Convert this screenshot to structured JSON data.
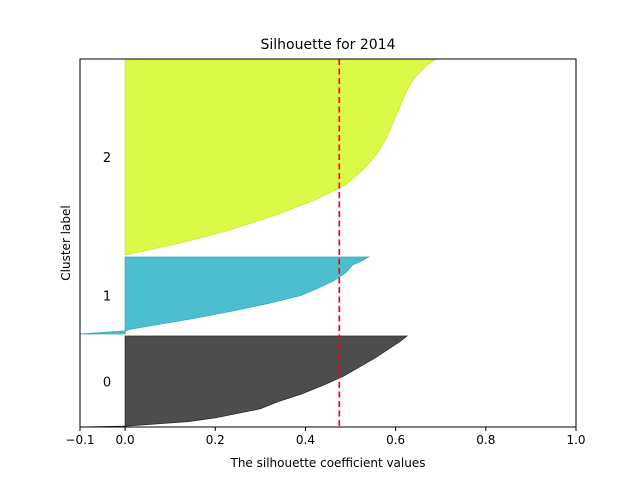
{
  "chart_data": {
    "type": "area",
    "title": "Silhouette for 2014",
    "xlabel": "The silhouette coefficient values",
    "ylabel": "Cluster label",
    "xlim": [
      -0.1,
      1.0
    ],
    "xticks": [
      -0.1,
      0.0,
      0.2,
      0.4,
      0.6,
      0.8,
      1.0
    ],
    "xtick_labels": [
      "−0.1",
      "0.0",
      "0.2",
      "0.4",
      "0.6",
      "0.8",
      "1.0"
    ],
    "average_silhouette": 0.475,
    "average_line_color": "#ff0000",
    "grid": false,
    "clusters": [
      {
        "label": "0",
        "color": "#4d4d4d",
        "edge": "#2a2a2a",
        "profile": [
          [
            0.0,
            0.625
          ],
          [
            0.06,
            0.61
          ],
          [
            0.14,
            0.585
          ],
          [
            0.24,
            0.555
          ],
          [
            0.34,
            0.52
          ],
          [
            0.44,
            0.485
          ],
          [
            0.54,
            0.44
          ],
          [
            0.64,
            0.39
          ],
          [
            0.72,
            0.34
          ],
          [
            0.8,
            0.3
          ],
          [
            0.86,
            0.24
          ],
          [
            0.9,
            0.2
          ],
          [
            0.94,
            0.14
          ],
          [
            0.97,
            0.06
          ],
          [
            0.99,
            0.0
          ],
          [
            1.0,
            -0.1
          ]
        ]
      },
      {
        "label": "1",
        "color": "#4bbfcf",
        "edge": "#3aa9b8",
        "profile": [
          [
            0.0,
            0.54
          ],
          [
            0.05,
            0.525
          ],
          [
            0.1,
            0.505
          ],
          [
            0.2,
            0.49
          ],
          [
            0.3,
            0.465
          ],
          [
            0.4,
            0.43
          ],
          [
            0.5,
            0.39
          ],
          [
            0.6,
            0.32
          ],
          [
            0.7,
            0.24
          ],
          [
            0.8,
            0.15
          ],
          [
            0.88,
            0.07
          ],
          [
            0.94,
            0.01
          ],
          [
            0.96,
            0.0
          ],
          [
            1.0,
            -0.1
          ]
        ]
      },
      {
        "label": "2",
        "color": "#dbfa48",
        "edge": "#c7e63a",
        "profile": [
          [
            0.0,
            0.69
          ],
          [
            0.04,
            0.665
          ],
          [
            0.1,
            0.64
          ],
          [
            0.16,
            0.625
          ],
          [
            0.24,
            0.61
          ],
          [
            0.32,
            0.595
          ],
          [
            0.4,
            0.58
          ],
          [
            0.48,
            0.56
          ],
          [
            0.56,
            0.53
          ],
          [
            0.64,
            0.49
          ],
          [
            0.72,
            0.42
          ],
          [
            0.8,
            0.33
          ],
          [
            0.88,
            0.22
          ],
          [
            0.94,
            0.12
          ],
          [
            0.98,
            0.04
          ],
          [
            1.0,
            0.0
          ]
        ]
      }
    ]
  }
}
